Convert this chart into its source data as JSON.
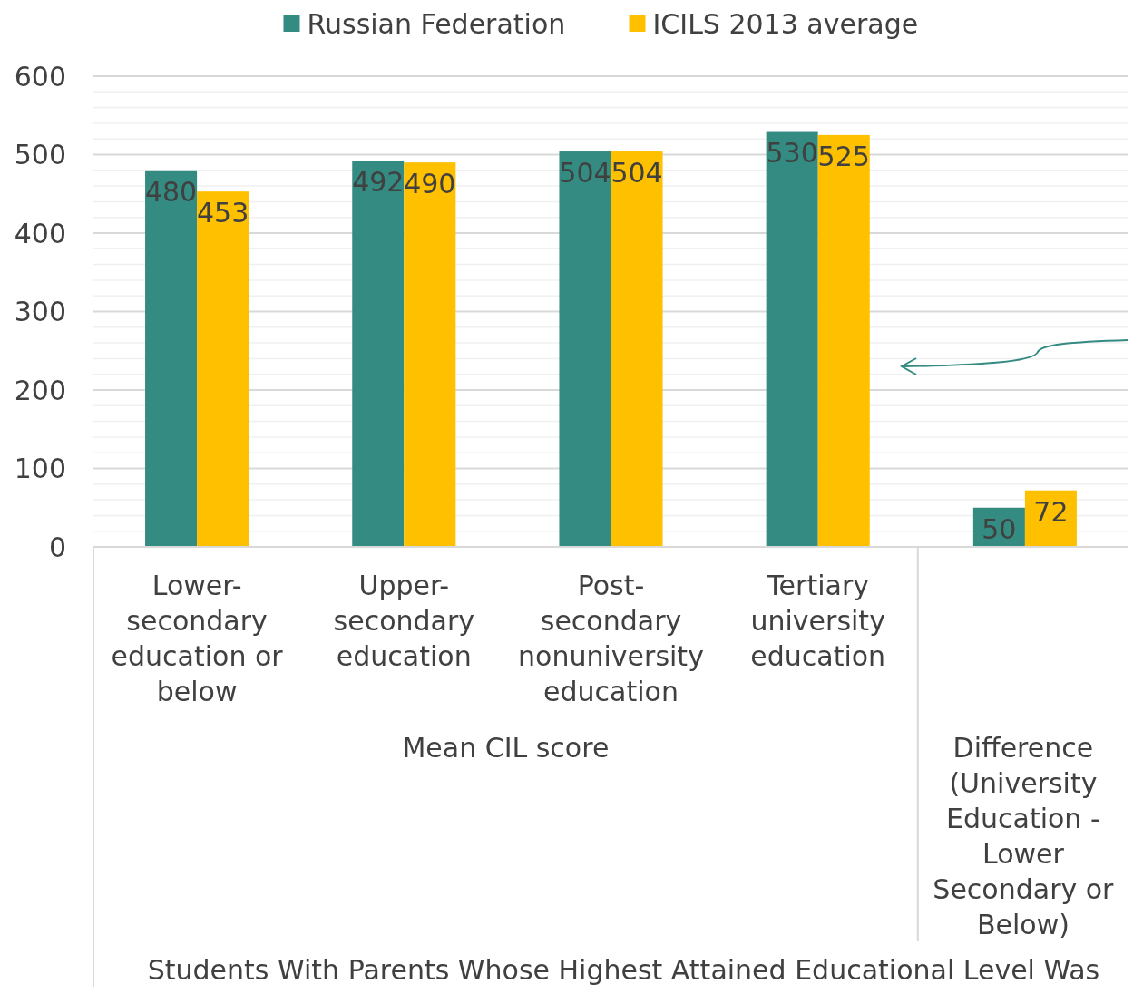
{
  "chart_data": {
    "type": "bar",
    "categories": [
      "Lower-secondary education or below",
      "Upper-secondary education",
      "Post-secondary nonuniversity education",
      "Tertiary university education",
      null
    ],
    "series": [
      {
        "name": "Russian Federation",
        "color": "#338b82",
        "values": [
          480,
          492,
          504,
          530,
          50
        ]
      },
      {
        "name": "ICILS 2013 average",
        "color": "#ffc000",
        "values": [
          453,
          490,
          504,
          525,
          72
        ]
      }
    ],
    "ylim": [
      0,
      600
    ],
    "yticks": [
      0,
      {
        "value": 20,
        "label": null
      },
      {
        "value": 40,
        "label": null
      },
      {
        "value": 60,
        "label": null
      },
      {
        "value": 80,
        "label": null
      },
      100,
      {
        "value": 120,
        "label": null
      },
      {
        "value": 140,
        "label": null
      },
      {
        "value": 160,
        "label": null
      },
      {
        "value": 180,
        "label": null
      },
      200,
      {
        "value": 220,
        "label": null
      },
      {
        "value": 240,
        "label": null
      },
      {
        "value": 260,
        "label": null
      },
      {
        "value": 280,
        "label": null
      },
      300,
      {
        "value": 320,
        "label": null
      },
      {
        "value": 340,
        "label": null
      },
      {
        "value": 360,
        "label": null
      },
      {
        "value": 380,
        "label": null
      },
      400,
      {
        "value": 420,
        "label": null
      },
      {
        "value": 440,
        "label": null
      },
      {
        "value": 460,
        "label": null
      },
      {
        "value": 480,
        "label": null
      },
      500,
      {
        "value": 520,
        "label": null
      },
      {
        "value": 540,
        "label": null
      },
      {
        "value": 560,
        "label": null
      },
      {
        "value": 580,
        "label": null
      },
      600
    ],
    "grid": "y",
    "legend": "top",
    "data_labels": true,
    "annotations": [
      "Mean CIL score",
      "Difference (University Education - Lower Secondary or Below)",
      "Students With Parents Whose Highest Attained Educational Level Was"
    ]
  }
}
